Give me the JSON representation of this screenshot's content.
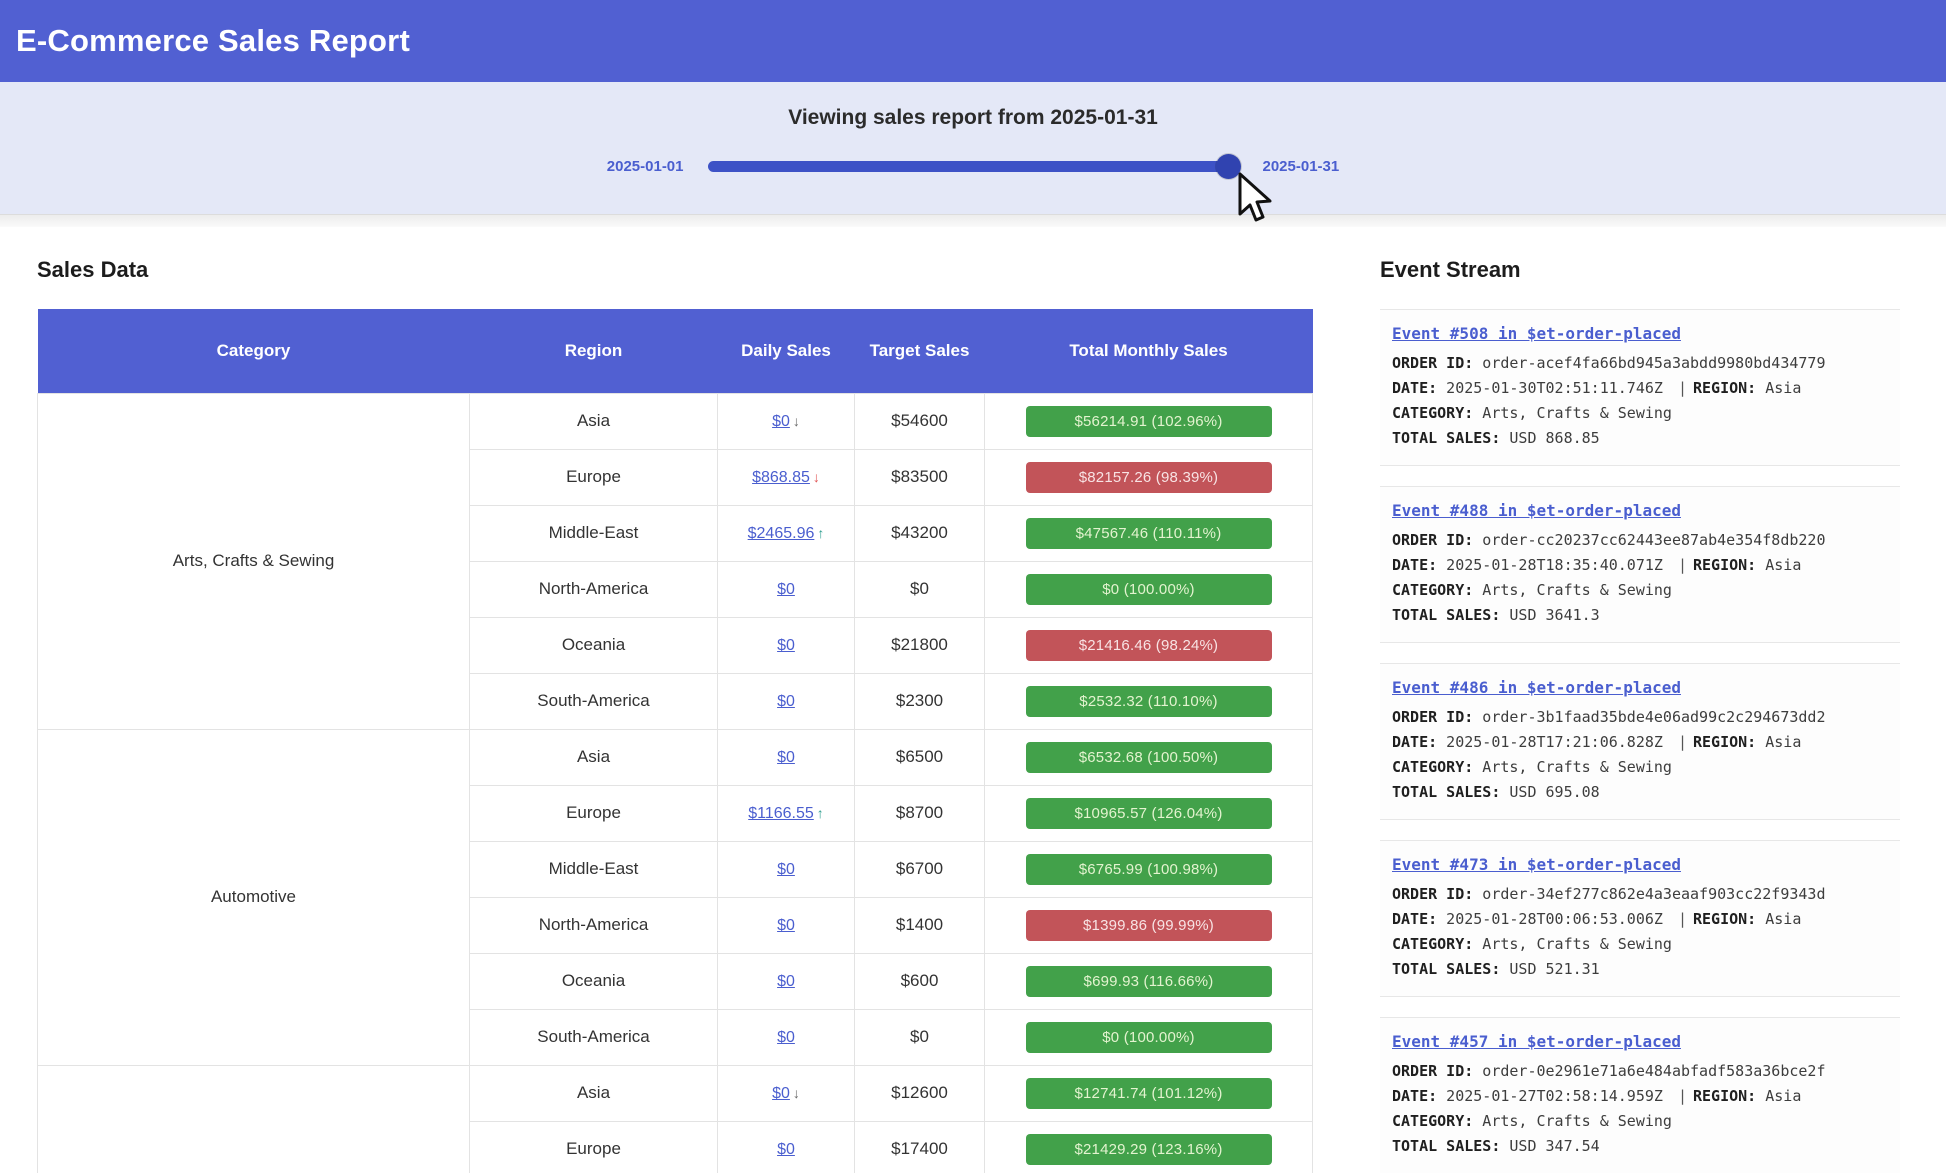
{
  "header": {
    "title": "E-Commerce Sales Report"
  },
  "slider": {
    "caption": "Viewing sales report from 2025-01-31",
    "min_label": "2025-01-01",
    "max_label": "2025-01-31"
  },
  "sales": {
    "heading": "Sales Data",
    "columns": [
      "Category",
      "Region",
      "Daily Sales",
      "Target Sales",
      "Total Monthly Sales"
    ],
    "rows": [
      {
        "category": "Arts, Crafts & Sewing",
        "rowspan": 6,
        "region": "Asia",
        "daily": "$0",
        "arrow": "↓",
        "arrow_color": "#666666",
        "target": "$54600",
        "badge": "$56214.91 (102.96%)",
        "badge_type": "green",
        "highlight": true
      },
      {
        "region": "Europe",
        "daily": "$868.85",
        "arrow": "↓",
        "arrow_color": "#e05252",
        "target": "$83500",
        "badge": "$82157.26 (98.39%)",
        "badge_type": "red"
      },
      {
        "region": "Middle-East",
        "daily": "$2465.96",
        "arrow": "↑",
        "arrow_color": "#2e9e8f",
        "target": "$43200",
        "badge": "$47567.46 (110.11%)",
        "badge_type": "green"
      },
      {
        "region": "North-America",
        "daily": "$0",
        "target": "$0",
        "badge": "$0 (100.00%)",
        "badge_type": "green"
      },
      {
        "region": "Oceania",
        "daily": "$0",
        "target": "$21800",
        "badge": "$21416.46 (98.24%)",
        "badge_type": "red"
      },
      {
        "region": "South-America",
        "daily": "$0",
        "target": "$2300",
        "badge": "$2532.32 (110.10%)",
        "badge_type": "green"
      },
      {
        "category": "Automotive",
        "rowspan": 6,
        "region": "Asia",
        "daily": "$0",
        "target": "$6500",
        "badge": "$6532.68 (100.50%)",
        "badge_type": "green"
      },
      {
        "region": "Europe",
        "daily": "$1166.55",
        "arrow": "↑",
        "arrow_color": "#2e9e8f",
        "target": "$8700",
        "badge": "$10965.57 (126.04%)",
        "badge_type": "green"
      },
      {
        "region": "Middle-East",
        "daily": "$0",
        "target": "$6700",
        "badge": "$6765.99 (100.98%)",
        "badge_type": "green"
      },
      {
        "region": "North-America",
        "daily": "$0",
        "target": "$1400",
        "badge": "$1399.86 (99.99%)",
        "badge_type": "red"
      },
      {
        "region": "Oceania",
        "daily": "$0",
        "target": "$600",
        "badge": "$699.93 (116.66%)",
        "badge_type": "green"
      },
      {
        "region": "South-America",
        "daily": "$0",
        "target": "$0",
        "badge": "$0 (100.00%)",
        "badge_type": "green"
      },
      {
        "category": "",
        "rowspan": 2,
        "region": "Asia",
        "daily": "$0",
        "arrow": "↓",
        "arrow_color": "#666666",
        "target": "$12600",
        "badge": "$12741.74 (101.12%)",
        "badge_type": "green"
      },
      {
        "region": "Europe",
        "daily": "$0",
        "target": "$17400",
        "badge": "$21429.29 (123.16%)",
        "badge_type": "green"
      }
    ]
  },
  "events": {
    "heading": "Event Stream",
    "labels": {
      "order_id": "ORDER ID:",
      "date": "DATE:",
      "region": "REGION:",
      "category": "CATEGORY:",
      "total": "TOTAL SALES:",
      "separator": "|"
    },
    "items": [
      {
        "title": "Event #508 in $et-order-placed",
        "order_id": "order-acef4fa66bd945a3abdd9980bd434779",
        "date": "2025-01-30T02:51:11.746Z",
        "region": "Asia",
        "category": "Arts, Crafts & Sewing",
        "total": "USD 868.85"
      },
      {
        "title": "Event #488 in $et-order-placed",
        "order_id": "order-cc20237cc62443ee87ab4e354f8db220",
        "date": "2025-01-28T18:35:40.071Z",
        "region": "Asia",
        "category": "Arts, Crafts & Sewing",
        "total": "USD 3641.3"
      },
      {
        "title": "Event #486 in $et-order-placed",
        "order_id": "order-3b1faad35bde4e06ad99c2c294673dd2",
        "date": "2025-01-28T17:21:06.828Z",
        "region": "Asia",
        "category": "Arts, Crafts & Sewing",
        "total": "USD 695.08"
      },
      {
        "title": "Event #473 in $et-order-placed",
        "order_id": "order-34ef277c862e4a3eaaf903cc22f9343d",
        "date": "2025-01-28T00:06:53.006Z",
        "region": "Asia",
        "category": "Arts, Crafts & Sewing",
        "total": "USD 521.31"
      },
      {
        "title": "Event #457 in $et-order-placed",
        "order_id": "order-0e2961e71a6e484abfadf583a36bce2f",
        "date": "2025-01-27T02:58:14.959Z",
        "region": "Asia",
        "category": "Arts, Crafts & Sewing",
        "total": "USD 347.54"
      }
    ]
  },
  "colors": {
    "header_blue": "#5160d2",
    "track_blue": "#3d52c6",
    "thumb_blue": "#3043b0",
    "link_blue": "#4a5ecf",
    "badge_green": "#42a14a",
    "badge_red": "#c25459",
    "row_highlight": "#dfe8f8"
  }
}
